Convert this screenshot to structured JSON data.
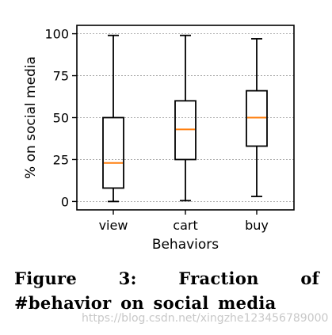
{
  "chart_data": {
    "type": "boxplot",
    "categories": [
      "view",
      "cart",
      "buy"
    ],
    "boxes": [
      {
        "category": "view",
        "whisker_low": 0,
        "q1": 8,
        "median": 23,
        "q3": 50,
        "whisker_high": 99
      },
      {
        "category": "cart",
        "whisker_low": 0.5,
        "q1": 25,
        "median": 43,
        "q3": 60,
        "whisker_high": 99
      },
      {
        "category": "buy",
        "whisker_low": 3,
        "q1": 33,
        "median": 50,
        "q3": 66,
        "whisker_high": 97
      }
    ],
    "title": "",
    "xlabel": "Behaviors",
    "ylabel": "% on social media",
    "ylim": [
      -5,
      105
    ],
    "yticks": [
      0,
      25,
      50,
      75,
      100
    ],
    "grid": "y-dashed",
    "legend": "none",
    "colors": {
      "box": "#000000",
      "median": "#ff7f0e",
      "grid": "#999999"
    }
  },
  "caption": "Figure 3: Fraction of #behavior on social media",
  "watermark": "https://blog.csdn.net/xingzhe123456789000"
}
